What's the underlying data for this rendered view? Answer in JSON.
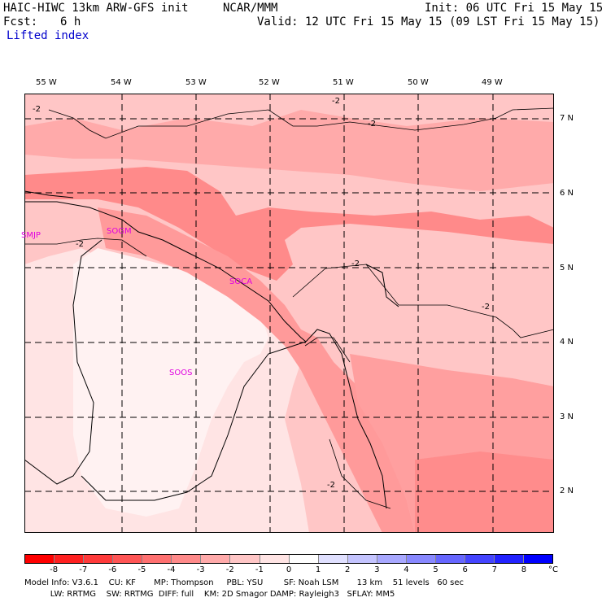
{
  "header": {
    "model": "HAIC-HIWC 13km ARW-GFS init",
    "center": "NCAR/MMM",
    "init": "Init: 06 UTC Fri 15 May 15",
    "fcst_label": "Fcst:",
    "fcst_value": "6 h",
    "valid": "Valid: 12 UTC Fri 15 May 15 (09 LST Fri 15 May 15)",
    "field": "Lifted index"
  },
  "map": {
    "lon_labels": [
      "55 W",
      "54 W",
      "53 W",
      "52 W",
      "51 W",
      "50 W",
      "49 W"
    ],
    "lat_labels": [
      "7 N",
      "6 N",
      "5 N",
      "4 N",
      "3 N",
      "2 N"
    ],
    "stations": [
      "SMJP",
      "SOGM",
      "SOCA",
      "SOOS"
    ],
    "contour_labels": [
      "-2",
      "-2",
      "-2",
      "-2",
      "-2",
      "-2",
      "-2"
    ]
  },
  "colorbar": {
    "labels": [
      "-8",
      "-7",
      "-6",
      "-5",
      "-4",
      "-3",
      "-2",
      "-1",
      "0",
      "1",
      "2",
      "3",
      "4",
      "5",
      "6",
      "7",
      "8"
    ],
    "unit": "°C",
    "colors": [
      "#ff0000",
      "#ff2020",
      "#ff3a3a",
      "#ff5555",
      "#ff7070",
      "#ff8a8a",
      "#ffaaaa",
      "#ffc6c6",
      "#ffe4e4",
      "#ffffff",
      "#e0e0ff",
      "#c4c4ff",
      "#a8a8ff",
      "#8888ff",
      "#6666ff",
      "#4444ff",
      "#2222ff",
      "#0000ff"
    ]
  },
  "footer": {
    "line1": "Model Info: V3.6.1    CU: KF       MP: Thompson     PBL: YSU        SF: Noah LSM       13 km    51 levels   60 sec",
    "line2": "          LW: RRTMG    SW: RRTMG  DIFF: full    KM: 2D Smagor DAMP: Rayleigh3   SFLAY: MM5"
  }
}
